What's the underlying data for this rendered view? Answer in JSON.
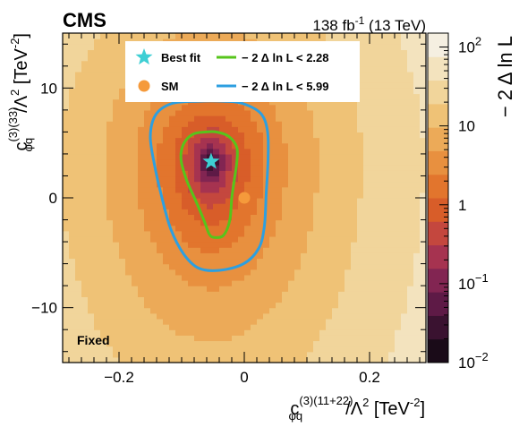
{
  "header": {
    "experiment": "CMS",
    "lumi_value": "138 fb",
    "lumi_sup": "-1",
    "lumi_energy": " (13 TeV)"
  },
  "annotation": "Fixed",
  "colors": {
    "best_fit": "#3ecfd4",
    "sm": "#f59a3b",
    "contour_68": "#57c41b",
    "contour_95": "#2d9fe0",
    "heatmap_ramp": [
      "#1a0b18",
      "#3a1230",
      "#5e1a46",
      "#822552",
      "#a63350",
      "#c4473e",
      "#d85d29",
      "#e2752d",
      "#e8903f",
      "#ecaa58",
      "#efc276",
      "#f1d59b",
      "#f3e3be",
      "#f5efe1"
    ]
  },
  "chart_data": {
    "type": "heatmap",
    "title": "",
    "xlabel": {
      "symbol": "c",
      "sub": "φq",
      "sup": "(3)(11+22)",
      "rest": "/Λ",
      "rest_sup": "2",
      "unit": " [TeV",
      "unit_sup": "-2",
      "unit_end": "]"
    },
    "ylabel": {
      "symbol": "c",
      "sub": "φq",
      "sup": "(3)(33)",
      "rest": "/Λ",
      "rest_sup": "2",
      "unit": " [TeV",
      "unit_sup": "-2",
      "unit_end": "]"
    },
    "xlim": [
      -0.29,
      0.29
    ],
    "ylim": [
      -15,
      15
    ],
    "x_ticks": [
      -0.2,
      0,
      0.2
    ],
    "x_tick_labels": [
      "−0.2",
      "0",
      "0.2"
    ],
    "y_ticks": [
      -10,
      0,
      10
    ],
    "y_tick_labels": [
      "−10",
      "0",
      "10"
    ],
    "colorbar": {
      "label": "− 2 Δ ln L",
      "scale": "log",
      "range": [
        0.01,
        150
      ],
      "ticks": [
        {
          "value": 0.01,
          "base": "10",
          "exp": "−2"
        },
        {
          "value": 0.1,
          "base": "10",
          "exp": "−1"
        },
        {
          "value": 1,
          "base": "1",
          "exp": ""
        },
        {
          "value": 10,
          "base": "10",
          "exp": ""
        },
        {
          "value": 100,
          "base": "10",
          "exp": "2"
        }
      ]
    },
    "minimum": {
      "x": -0.053,
      "y": 3.3
    },
    "level_quadratic_coefficients": {
      "a_x": 330,
      "a_y_above": 0.065,
      "a_y_below": 0.036
    },
    "best_fit": {
      "x": -0.053,
      "y": 3.3
    },
    "sm_point": {
      "x": 0,
      "y": 0
    },
    "contours": [
      {
        "level": 2.28,
        "label": "− 2  Δ ln L < 2.28",
        "points": [
          [
            -0.061,
            6.0
          ],
          [
            -0.045,
            6.0
          ],
          [
            -0.025,
            5.6
          ],
          [
            -0.012,
            4.6
          ],
          [
            -0.012,
            3.2
          ],
          [
            -0.016,
            1.6
          ],
          [
            -0.02,
            0.0
          ],
          [
            -0.023,
            -2.0
          ],
          [
            -0.033,
            -3.4
          ],
          [
            -0.048,
            -3.6
          ],
          [
            -0.056,
            -3.3
          ],
          [
            -0.064,
            -2.1
          ],
          [
            -0.078,
            -0.2
          ],
          [
            -0.092,
            1.6
          ],
          [
            -0.101,
            3.5
          ],
          [
            -0.097,
            4.9
          ],
          [
            -0.082,
            5.8
          ],
          [
            -0.061,
            6.0
          ]
        ]
      },
      {
        "level": 5.99,
        "label": "− 2  Δ ln L < 5.99",
        "points": [
          [
            -0.074,
            8.8
          ],
          [
            -0.032,
            8.8
          ],
          [
            -0.003,
            8.6
          ],
          [
            0.026,
            7.7
          ],
          [
            0.037,
            6.1
          ],
          [
            0.038,
            3.6
          ],
          [
            0.035,
            0.4
          ],
          [
            0.032,
            -2.6
          ],
          [
            0.023,
            -4.6
          ],
          [
            -0.001,
            -6.0
          ],
          [
            -0.04,
            -6.6
          ],
          [
            -0.073,
            -6.4
          ],
          [
            -0.097,
            -5.1
          ],
          [
            -0.117,
            -2.9
          ],
          [
            -0.131,
            -0.1
          ],
          [
            -0.143,
            2.9
          ],
          [
            -0.15,
            5.6
          ],
          [
            -0.141,
            7.6
          ],
          [
            -0.115,
            8.6
          ],
          [
            -0.074,
            8.8
          ]
        ]
      }
    ],
    "legend": {
      "placement": "top-center",
      "entries": [
        {
          "label": "Best fit",
          "marker": "star"
        },
        {
          "label": "SM",
          "marker": "circle"
        },
        {
          "label": "− 2  Δ ln L < 2.28",
          "marker": "line"
        },
        {
          "label": "− 2  Δ ln L < 5.99",
          "marker": "line"
        }
      ]
    }
  }
}
